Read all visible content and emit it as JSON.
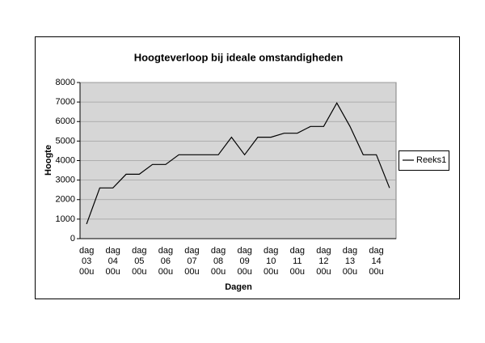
{
  "chart_data": {
    "type": "line",
    "title": "Hoogteverloop bij ideale omstandigheden",
    "x_label": "Dagen",
    "y_label": "Hoogte",
    "categories": [
      "dag 03 00u",
      null,
      "dag 04 00u",
      null,
      "dag 05 00u",
      null,
      "dag 06 00u",
      null,
      "dag 07 00u",
      null,
      "dag 08 00u",
      null,
      "dag 09 00u",
      null,
      "dag 10 00u",
      null,
      "dag 11 00u",
      null,
      "dag 12 00u",
      null,
      "dag 13 00u",
      null,
      "dag 14 00u",
      null
    ],
    "series": [
      {
        "name": "Reeks1",
        "color": "#000000",
        "values": [
          750,
          2600,
          2600,
          3300,
          3300,
          3800,
          3800,
          4300,
          4300,
          4300,
          4300,
          5200,
          4300,
          5200,
          5200,
          5400,
          5400,
          5750,
          5750,
          6950,
          5750,
          4300,
          4300,
          2600
        ]
      }
    ],
    "ylim": [
      0,
      8000
    ],
    "yticks": [
      0,
      1000,
      2000,
      3000,
      4000,
      5000,
      6000,
      7000,
      8000
    ],
    "grid": true,
    "legend": "right"
  }
}
